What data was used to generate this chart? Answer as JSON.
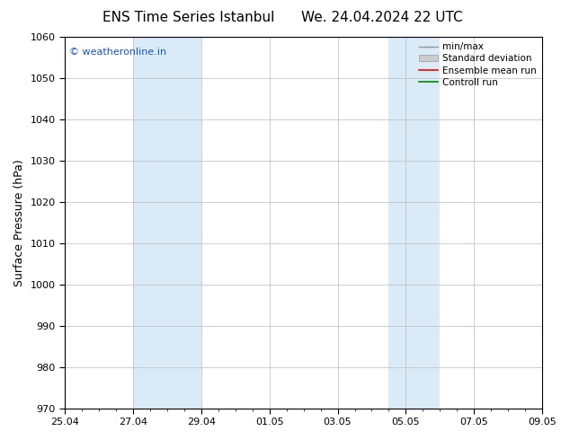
{
  "title_left": "ENS Time Series Istanbul",
  "title_right": "We. 24.04.2024 22 UTC",
  "ylabel": "Surface Pressure (hPa)",
  "ylim": [
    970,
    1060
  ],
  "yticks": [
    970,
    980,
    990,
    1000,
    1010,
    1020,
    1030,
    1040,
    1050,
    1060
  ],
  "xtick_labels": [
    "25.04",
    "27.04",
    "29.04",
    "01.05",
    "03.05",
    "05.05",
    "07.05",
    "09.05"
  ],
  "xtick_positions": [
    0,
    2,
    4,
    6,
    8,
    10,
    12,
    14
  ],
  "x_min": 0,
  "x_max": 14,
  "shaded_bands": [
    {
      "x_start": 2.0,
      "x_end": 4.0,
      "color": "#daeaf7"
    },
    {
      "x_start": 9.5,
      "x_end": 11.0,
      "color": "#daeaf7"
    }
  ],
  "watermark_text": "© weatheronline.in",
  "watermark_color": "#1155cc",
  "background_color": "#ffffff",
  "grid_color": "#bbbbbb",
  "font_family": "DejaVu Sans",
  "tick_fontsize": 8,
  "label_fontsize": 9,
  "title_fontsize": 11,
  "legend_fontsize": 7.5
}
